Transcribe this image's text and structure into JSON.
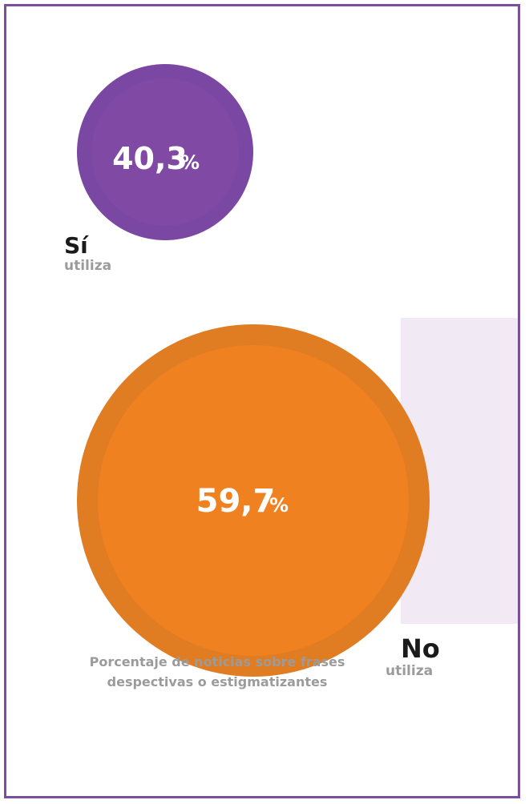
{
  "colors": {
    "frame": "#7c4ea0",
    "si_outer": "#7a48a3",
    "si_inner": "#8049a3",
    "no_outer": "#e07c21",
    "no_inner": "#f08121",
    "panel": "#f1eaf4",
    "muted_text": "#9b9b9b",
    "dark_text": "#1a1a1a"
  },
  "chart_data": {
    "type": "bubble",
    "title": "Porcentaje de noticias sobre frases despectivas o estigmatizantes",
    "unit": "%",
    "series": [
      {
        "label": "Sí",
        "sublabel": "utiliza",
        "value": 40.3,
        "value_text": "40,3",
        "color": "#7a48a3"
      },
      {
        "label": "No",
        "sublabel": "utiliza",
        "value": 59.7,
        "value_text": "59,7",
        "color": "#f08121"
      }
    ]
  },
  "caption": {
    "line1": "Porcentaje de noticias sobre frases",
    "line2": "despectivas o estigmatizantes"
  }
}
